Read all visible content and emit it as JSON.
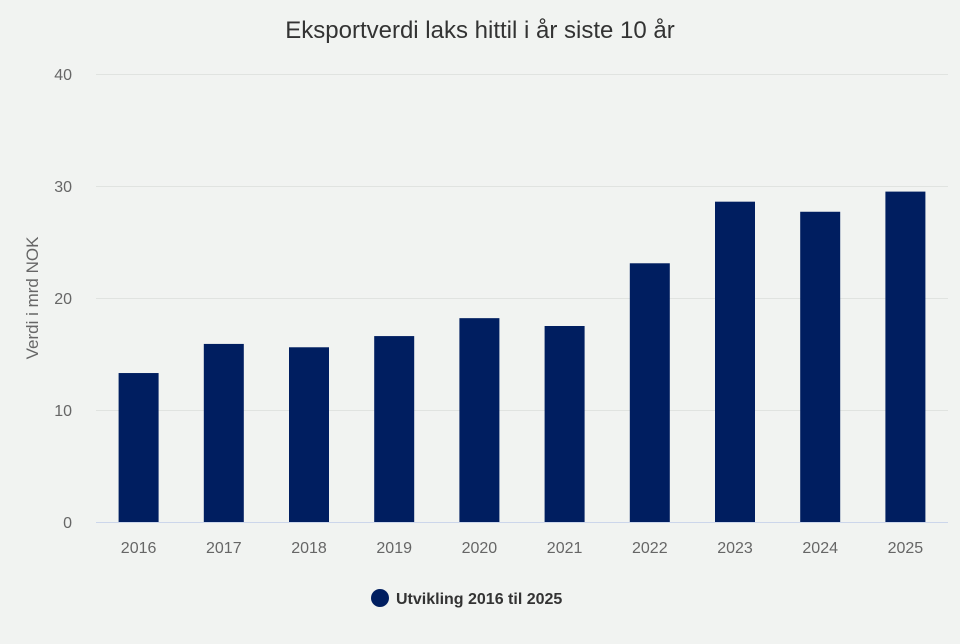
{
  "chart_data": {
    "type": "bar",
    "title": "Eksportverdi laks hittil i år siste 10 år",
    "xlabel": "",
    "ylabel": "Verdi i mrd NOK",
    "ylim": [
      0,
      40
    ],
    "yticks": [
      0,
      10,
      20,
      30,
      40
    ],
    "grid": true,
    "categories": [
      "2016",
      "2017",
      "2018",
      "2019",
      "2020",
      "2021",
      "2022",
      "2023",
      "2024",
      "2025"
    ],
    "series": [
      {
        "name": "Utvikling 2016 til 2025",
        "color": "#001e60",
        "values": [
          13.3,
          15.9,
          15.6,
          16.6,
          18.2,
          17.5,
          23.1,
          28.6,
          27.7,
          29.5
        ]
      }
    ],
    "legend_position": "bottom-center"
  }
}
